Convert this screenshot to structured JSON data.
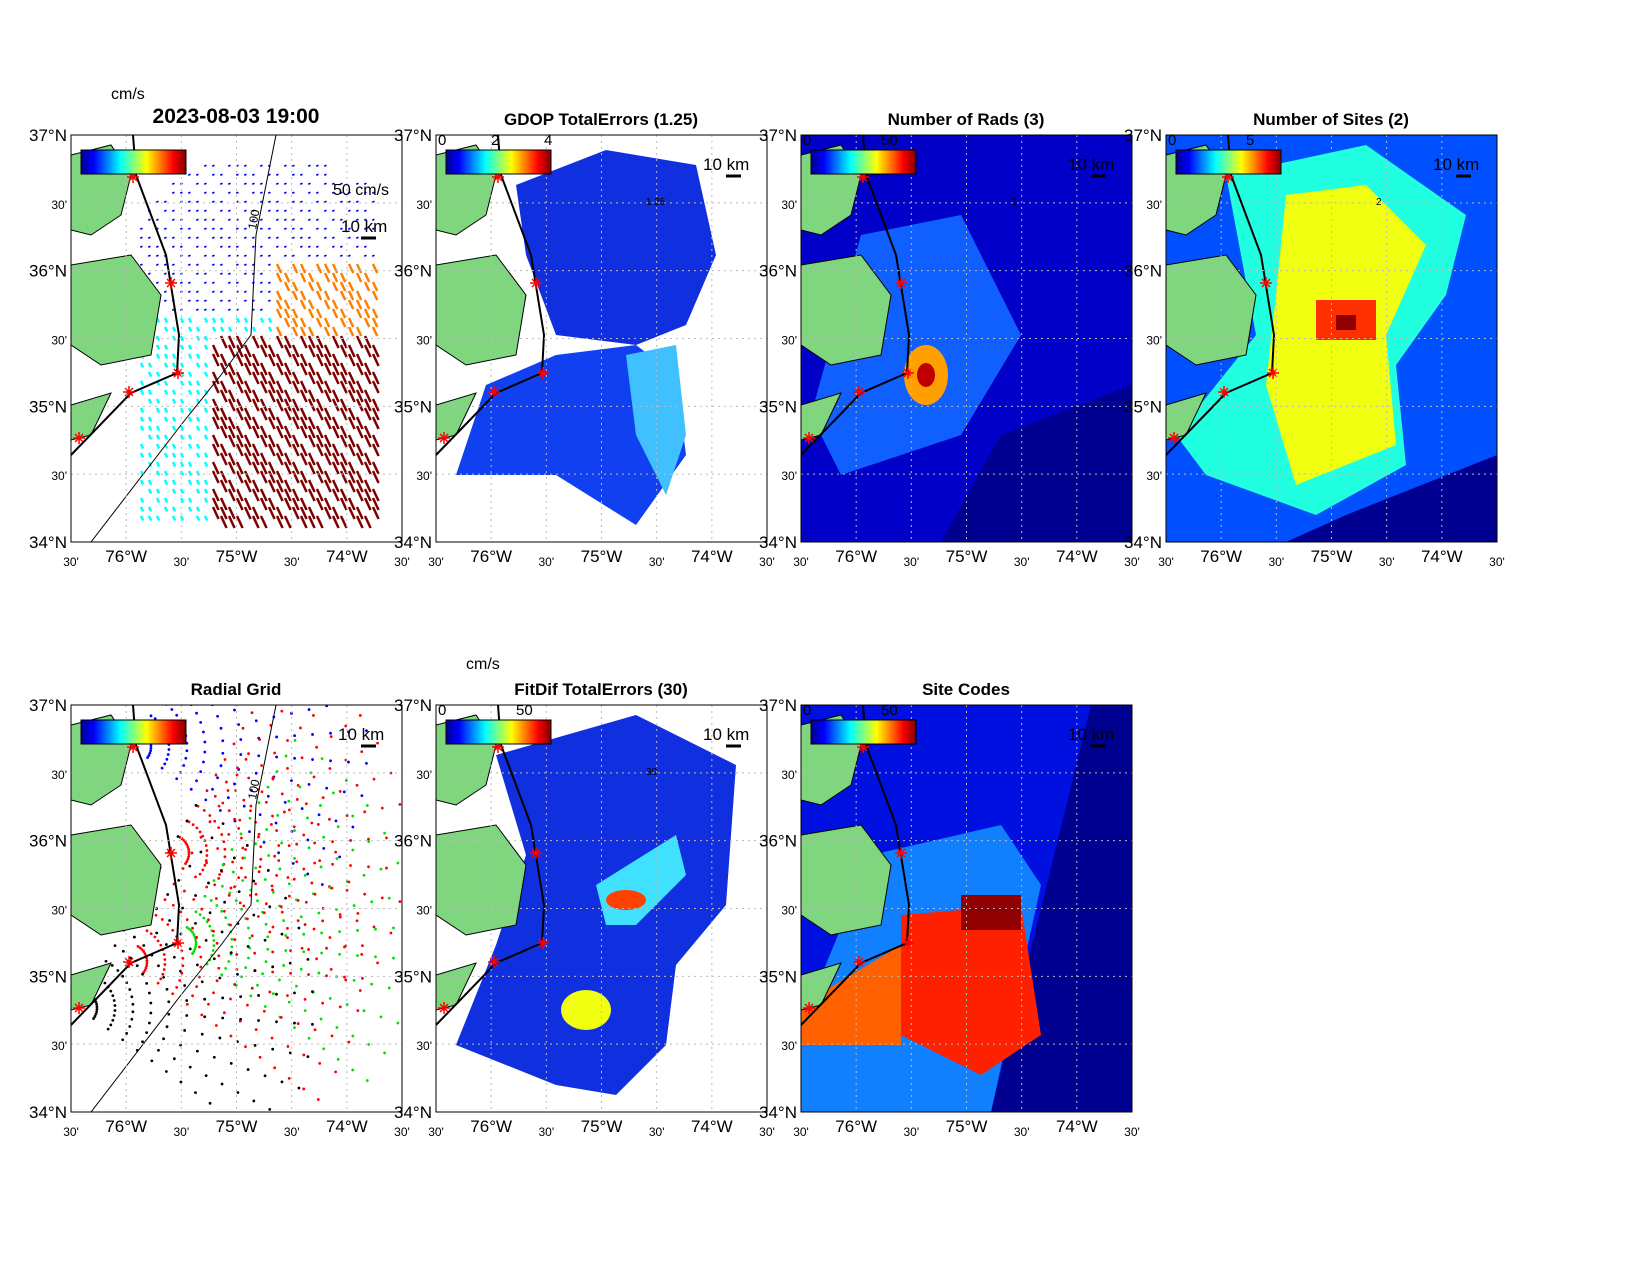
{
  "chart_data": [
    {
      "type": "heatmap",
      "title": "2023-08-03 19:00",
      "colorbar_label": "cm/s",
      "colorbar_ticks": [],
      "scale_label": "50 cm/s",
      "distance_label": "10 km",
      "contour_label": "100",
      "kind": "vectors"
    },
    {
      "type": "heatmap",
      "title": "GDOP TotalErrors (1.25)",
      "colorbar_ticks": [
        "0",
        "2",
        "4"
      ],
      "distance_label": "10 km",
      "contour_label": "1.25",
      "kind": "gdop"
    },
    {
      "type": "heatmap",
      "title": "Number of Rads (3)",
      "colorbar_ticks": [
        "0",
        "50"
      ],
      "distance_label": "10 km",
      "contour_label": "3",
      "kind": "rads"
    },
    {
      "type": "heatmap",
      "title": "Number of Sites (2)",
      "colorbar_ticks": [
        "0",
        "5"
      ],
      "distance_label": "10 km",
      "contour_label": "2",
      "kind": "sites"
    },
    {
      "type": "scatter",
      "title": "Radial Grid",
      "colorbar_ticks": [],
      "distance_label": "10 km",
      "contour_label": "100",
      "kind": "grid"
    },
    {
      "type": "heatmap",
      "title": "FitDif TotalErrors (30)",
      "colorbar_label": "cm/s",
      "colorbar_ticks": [
        "0",
        "50"
      ],
      "distance_label": "10 km",
      "contour_label": "30",
      "kind": "fitdif"
    },
    {
      "type": "heatmap",
      "title": "Site Codes",
      "colorbar_ticks": [
        "0",
        "50"
      ],
      "distance_label": "10 km",
      "kind": "codes"
    }
  ],
  "axes": {
    "lat_ticks": [
      "37°N",
      "30'",
      "36°N",
      "30'",
      "35°N",
      "30'",
      "34°N"
    ],
    "lon_ticks": [
      "30'",
      "76°W",
      "30'",
      "75°W",
      "30'",
      "74°W",
      "30'"
    ],
    "ylim": [
      34,
      37
    ],
    "xlim": [
      -76.5,
      -73.5
    ]
  },
  "colors": {
    "land": "#7fd67f",
    "site_marker": "#ff0000",
    "colormap": "jet"
  }
}
